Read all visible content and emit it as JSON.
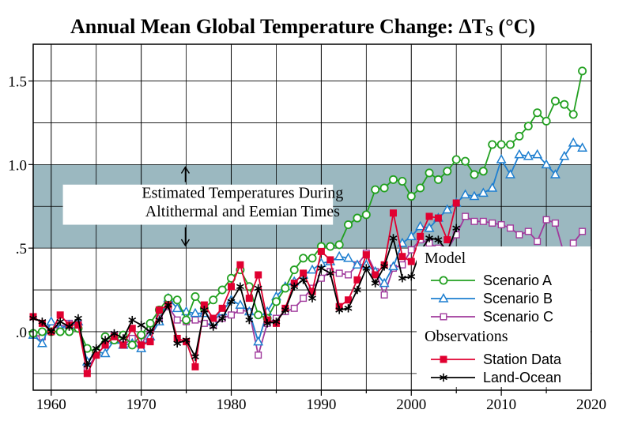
{
  "chart_data": {
    "type": "line",
    "title": "Annual Mean Global Temperature Change: ΔT",
    "title_subscript": "S",
    "title_suffix": " (°C)",
    "xlim": [
      1958,
      2020
    ],
    "ylim": [
      -0.35,
      1.72
    ],
    "x_ticks": [
      1960,
      1970,
      1980,
      1990,
      2000,
      2010,
      2020
    ],
    "y_ticks": [
      {
        "value": 1.5,
        "label": "1.5"
      },
      {
        "value": 1.0,
        "label": "1.0"
      },
      {
        "value": 0.5,
        "label": ".5"
      },
      {
        "value": 0.0,
        "label": ".0"
      }
    ],
    "grid": true,
    "band": {
      "y_from": 0.5,
      "y_to": 1.0,
      "color": "#9bb8c0",
      "label_lines": [
        "Estimated Temperatures During",
        "Altithermal and Eemian Times"
      ]
    },
    "legend": {
      "placement": "bottom-right",
      "group1_title": "Model",
      "group2_title": "Observations"
    },
    "series": [
      {
        "name": "Scenario A",
        "key": "A",
        "color": "#22a020",
        "marker": "circle",
        "legend_group": 1,
        "x": [
          1958,
          1959,
          1960,
          1961,
          1962,
          1963,
          1964,
          1965,
          1966,
          1967,
          1968,
          1969,
          1970,
          1971,
          1972,
          1973,
          1974,
          1975,
          1976,
          1977,
          1978,
          1979,
          1980,
          1981,
          1982,
          1983,
          1984,
          1985,
          1986,
          1987,
          1988,
          1989,
          1990,
          1991,
          1992,
          1993,
          1994,
          1995,
          1996,
          1997,
          1998,
          1999,
          2000,
          2001,
          2002,
          2003,
          2004,
          2005,
          2006,
          2007,
          2008,
          2009,
          2010,
          2011,
          2012,
          2013,
          2014,
          2015,
          2016,
          2017,
          2018,
          2019
        ],
        "y": [
          -0.01,
          0.0,
          0.0,
          0.0,
          0.0,
          0.02,
          -0.1,
          -0.12,
          -0.03,
          -0.05,
          -0.02,
          -0.08,
          -0.02,
          0.05,
          0.13,
          0.2,
          0.19,
          0.07,
          0.21,
          0.14,
          0.19,
          0.25,
          0.32,
          0.37,
          0.27,
          0.1,
          0.08,
          0.18,
          0.26,
          0.37,
          0.44,
          0.44,
          0.51,
          0.51,
          0.52,
          0.64,
          0.68,
          0.7,
          0.85,
          0.86,
          0.91,
          0.9,
          0.81,
          0.86,
          0.95,
          0.91,
          0.96,
          1.03,
          1.02,
          0.94,
          0.96,
          1.12,
          1.12,
          1.12,
          1.17,
          1.23,
          1.31,
          1.26,
          1.38,
          1.36,
          1.3,
          1.56
        ]
      },
      {
        "name": "Scenario B",
        "key": "B",
        "color": "#1e7fd0",
        "marker": "triangle",
        "legend_group": 1,
        "x": [
          1958,
          1959,
          1960,
          1961,
          1962,
          1963,
          1964,
          1965,
          1966,
          1967,
          1968,
          1969,
          1970,
          1971,
          1972,
          1973,
          1974,
          1975,
          1976,
          1977,
          1978,
          1979,
          1980,
          1981,
          1982,
          1983,
          1984,
          1985,
          1986,
          1987,
          1988,
          1989,
          1990,
          1991,
          1992,
          1993,
          1994,
          1995,
          1996,
          1997,
          1998,
          1999,
          2000,
          2001,
          2002,
          2003,
          2004,
          2005,
          2006,
          2007,
          2008,
          2009,
          2010,
          2011,
          2012,
          2013,
          2014,
          2015,
          2016,
          2017,
          2018,
          2019
        ],
        "y": [
          -0.02,
          -0.07,
          0.06,
          0.02,
          0.04,
          0.06,
          -0.18,
          -0.12,
          -0.13,
          -0.05,
          -0.08,
          -0.07,
          -0.1,
          -0.03,
          0.06,
          0.2,
          0.14,
          0.12,
          0.11,
          0.11,
          0.06,
          0.12,
          0.19,
          0.16,
          0.12,
          -0.06,
          0.12,
          0.21,
          0.27,
          0.3,
          0.34,
          0.37,
          0.41,
          0.42,
          0.45,
          0.44,
          0.4,
          0.4,
          0.36,
          0.29,
          0.39,
          0.53,
          0.57,
          0.63,
          0.62,
          0.68,
          0.73,
          0.77,
          0.82,
          0.81,
          0.83,
          0.86,
          1.03,
          0.94,
          1.06,
          1.05,
          1.06,
          1.0,
          0.94,
          1.05,
          1.13,
          1.1
        ]
      },
      {
        "name": "Scenario C",
        "key": "C",
        "color": "#a03a9c",
        "marker": "square",
        "legend_group": 1,
        "x": [
          1958,
          1959,
          1960,
          1961,
          1962,
          1963,
          1964,
          1965,
          1966,
          1967,
          1968,
          1969,
          1970,
          1971,
          1972,
          1973,
          1974,
          1975,
          1976,
          1977,
          1978,
          1979,
          1980,
          1981,
          1982,
          1983,
          1984,
          1985,
          1986,
          1987,
          1988,
          1989,
          1990,
          1991,
          1992,
          1993,
          1994,
          1995,
          1996,
          1997,
          1998,
          1999,
          2000,
          2001,
          2002,
          2003,
          2004,
          2005,
          2006,
          2007,
          2008,
          2009,
          2010,
          2011,
          2012,
          2013,
          2014,
          2015,
          2016,
          2017,
          2018,
          2019
        ],
        "y": [
          -0.02,
          -0.03,
          0.03,
          0.02,
          0.05,
          0.05,
          -0.22,
          -0.14,
          -0.08,
          -0.02,
          -0.08,
          -0.04,
          -0.08,
          0.02,
          0.08,
          0.15,
          0.07,
          0.06,
          0.07,
          0.05,
          0.04,
          0.08,
          0.1,
          0.13,
          0.12,
          -0.14,
          0.05,
          0.08,
          0.12,
          0.14,
          0.2,
          0.26,
          0.32,
          0.36,
          0.35,
          0.34,
          0.4,
          0.47,
          0.36,
          0.22,
          0.38,
          0.4,
          0.49,
          0.55,
          0.53,
          0.5,
          0.49,
          0.58,
          0.69,
          0.66,
          0.66,
          0.65,
          0.64,
          0.62,
          0.58,
          0.6,
          0.54,
          0.67,
          0.65,
          0.46,
          0.53,
          0.6
        ]
      },
      {
        "name": "Station Data",
        "key": "S",
        "color": "#e00030",
        "marker": "filled-square",
        "legend_group": 2,
        "x": [
          1958,
          1959,
          1960,
          1961,
          1962,
          1963,
          1964,
          1965,
          1966,
          1967,
          1968,
          1969,
          1970,
          1971,
          1972,
          1973,
          1974,
          1975,
          1976,
          1977,
          1978,
          1979,
          1980,
          1981,
          1982,
          1983,
          1984,
          1985,
          1986,
          1987,
          1988,
          1989,
          1990,
          1991,
          1992,
          1993,
          1994,
          1995,
          1996,
          1997,
          1998,
          1999,
          2000,
          2001,
          2002,
          2003,
          2004,
          2005
        ],
        "y": [
          0.09,
          0.05,
          0.0,
          0.1,
          0.04,
          0.04,
          -0.25,
          -0.14,
          -0.08,
          -0.03,
          -0.08,
          0.02,
          -0.08,
          -0.06,
          0.13,
          0.16,
          -0.04,
          -0.06,
          -0.21,
          0.16,
          0.08,
          0.14,
          0.27,
          0.4,
          0.2,
          0.34,
          0.07,
          0.05,
          0.14,
          0.29,
          0.35,
          0.24,
          0.48,
          0.43,
          0.15,
          0.19,
          0.31,
          0.46,
          0.34,
          0.4,
          0.71,
          0.45,
          0.42,
          0.57,
          0.69,
          0.68,
          0.55,
          0.77
        ]
      },
      {
        "name": "Land-Ocean",
        "key": "L",
        "color": "#000000",
        "marker": "asterisk",
        "legend_group": 2,
        "x": [
          1958,
          1959,
          1960,
          1961,
          1962,
          1963,
          1964,
          1965,
          1966,
          1967,
          1968,
          1969,
          1970,
          1971,
          1972,
          1973,
          1974,
          1975,
          1976,
          1977,
          1978,
          1979,
          1980,
          1981,
          1982,
          1983,
          1984,
          1985,
          1986,
          1987,
          1988,
          1989,
          1990,
          1991,
          1992,
          1993,
          1994,
          1995,
          1996,
          1997,
          1998,
          1999,
          2000,
          2001,
          2002,
          2003,
          2004,
          2005
        ],
        "y": [
          0.08,
          0.06,
          0.0,
          0.06,
          0.03,
          0.08,
          -0.2,
          -0.1,
          -0.05,
          -0.01,
          -0.04,
          0.07,
          0.04,
          0.0,
          0.07,
          0.16,
          -0.07,
          -0.05,
          -0.15,
          0.13,
          0.03,
          0.08,
          0.18,
          0.27,
          0.07,
          0.26,
          0.05,
          0.06,
          0.13,
          0.27,
          0.31,
          0.2,
          0.38,
          0.35,
          0.13,
          0.14,
          0.25,
          0.38,
          0.29,
          0.39,
          0.56,
          0.32,
          0.33,
          0.48,
          0.56,
          0.55,
          0.48,
          0.62
        ]
      }
    ]
  }
}
